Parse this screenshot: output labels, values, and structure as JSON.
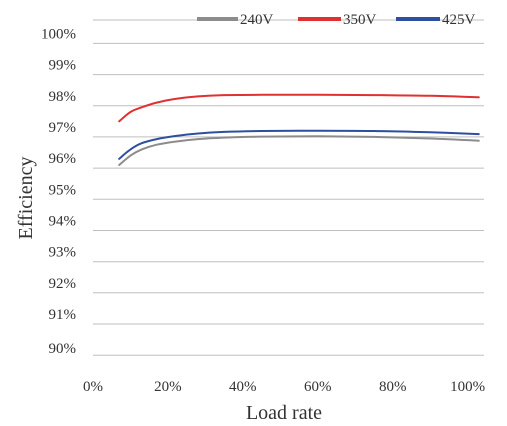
{
  "chart_data": {
    "type": "line",
    "xlabel": "Load rate",
    "ylabel": "Efficiency",
    "xlim": [
      0,
      100
    ],
    "ylim": [
      89.75,
      100.75
    ],
    "x_ticks": [
      "0%",
      "20%",
      "40%",
      "60%",
      "80%",
      "100%"
    ],
    "y_ticks": [
      "90%",
      "91%",
      "92%",
      "93%",
      "94%",
      "95%",
      "96%",
      "97%",
      "98%",
      "99%",
      "100%"
    ],
    "grid": "horizontal",
    "legend_position": "top",
    "series": [
      {
        "name": "240V",
        "color": "#8c8c8c",
        "points": [
          [
            7,
            96.1
          ],
          [
            10,
            96.4
          ],
          [
            13,
            96.6
          ],
          [
            17,
            96.75
          ],
          [
            22,
            96.85
          ],
          [
            28,
            96.93
          ],
          [
            35,
            96.98
          ],
          [
            45,
            97.01
          ],
          [
            60,
            97.02
          ],
          [
            75,
            97.0
          ],
          [
            90,
            96.95
          ],
          [
            103,
            96.88
          ]
        ]
      },
      {
        "name": "350V",
        "color": "#e03030",
        "points": [
          [
            7,
            97.5
          ],
          [
            10,
            97.8
          ],
          [
            13,
            97.95
          ],
          [
            17,
            98.1
          ],
          [
            22,
            98.22
          ],
          [
            28,
            98.3
          ],
          [
            35,
            98.34
          ],
          [
            45,
            98.35
          ],
          [
            60,
            98.35
          ],
          [
            75,
            98.34
          ],
          [
            90,
            98.32
          ],
          [
            103,
            98.27
          ]
        ]
      },
      {
        "name": "425V",
        "color": "#2e4e9e",
        "points": [
          [
            7,
            96.3
          ],
          [
            10,
            96.6
          ],
          [
            13,
            96.8
          ],
          [
            17,
            96.93
          ],
          [
            22,
            97.03
          ],
          [
            28,
            97.11
          ],
          [
            35,
            97.16
          ],
          [
            45,
            97.19
          ],
          [
            60,
            97.2
          ],
          [
            75,
            97.19
          ],
          [
            90,
            97.15
          ],
          [
            103,
            97.09
          ]
        ]
      }
    ]
  }
}
